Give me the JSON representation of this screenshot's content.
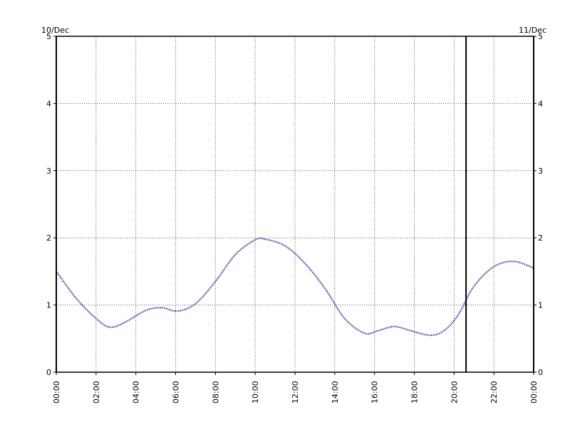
{
  "chart_data": {
    "type": "line",
    "title": "",
    "xlabel": "",
    "ylabel": "",
    "date_left": "10/Dec",
    "date_right": "11/Dec",
    "x_tick_labels": [
      "00:00",
      "02:00",
      "04:00",
      "06:00",
      "08:00",
      "10:00",
      "12:00",
      "14:00",
      "16:00",
      "18:00",
      "20:00",
      "22:00",
      "00:00"
    ],
    "y_tick_labels": [
      "0",
      "1",
      "2",
      "3",
      "4",
      "5"
    ],
    "xlim_hours": [
      0,
      24
    ],
    "ylim": [
      0,
      5
    ],
    "grid": true,
    "marker_line_hour": 20.6,
    "series": [
      {
        "color": "#00008b",
        "style": "dotted",
        "x_hours": [
          0,
          1,
          2,
          2.7,
          3.5,
          4.5,
          5.3,
          6.1,
          7,
          8,
          9,
          10,
          10.5,
          11.5,
          12.5,
          13.5,
          14.5,
          15.5,
          16.2,
          17,
          17.8,
          18.8,
          19.5,
          20.2,
          21,
          22,
          23,
          24
        ],
        "values": [
          1.5,
          1.1,
          0.8,
          0.67,
          0.75,
          0.92,
          0.96,
          0.91,
          1.02,
          1.35,
          1.75,
          1.97,
          1.98,
          1.88,
          1.62,
          1.25,
          0.8,
          0.58,
          0.62,
          0.68,
          0.62,
          0.55,
          0.62,
          0.85,
          1.28,
          1.57,
          1.65,
          1.55
        ]
      }
    ]
  }
}
